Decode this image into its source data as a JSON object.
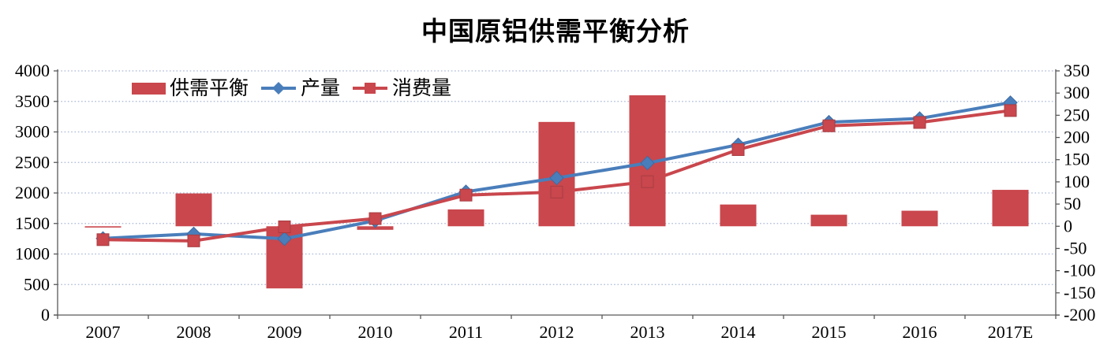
{
  "title": "中国原铝供需平衡分析",
  "chart_data": {
    "type": "combo-bar-line",
    "title": "中国原铝供需平衡分析",
    "categories": [
      "2007",
      "2008",
      "2009",
      "2010",
      "2011",
      "2012",
      "2013",
      "2014",
      "2015",
      "2016",
      "2017E"
    ],
    "series": [
      {
        "name": "供需平衡",
        "kind": "bar",
        "axis": "right",
        "color": "#C9474D",
        "values": [
          -2,
          74,
          -140,
          -8,
          38,
          235,
          295,
          49,
          26,
          35,
          82
        ]
      },
      {
        "name": "产量",
        "kind": "line",
        "axis": "left",
        "marker": "diamond",
        "color": "#4A7EBB",
        "marker_stroke": "#3E6CA4",
        "values": [
          1255,
          1330,
          1250,
          1545,
          2020,
          2245,
          2490,
          2790,
          3160,
          3220,
          3480
        ]
      },
      {
        "name": "消费量",
        "kind": "line",
        "axis": "left",
        "marker": "square",
        "color": "#C9474D",
        "marker_stroke": "#A83D42",
        "values": [
          1235,
          1215,
          1445,
          1580,
          1965,
          2015,
          2185,
          2710,
          3100,
          3155,
          3350
        ]
      }
    ],
    "left_axis": {
      "min": 0,
      "max": 4000,
      "step": 500,
      "tick_labels": [
        "0",
        "500",
        "1000",
        "1500",
        "2000",
        "2500",
        "3000",
        "3500",
        "4000"
      ]
    },
    "right_axis": {
      "min": -200,
      "max": 350,
      "step": 50,
      "tick_labels": [
        "-200",
        "-150",
        "-100",
        "-50",
        "0",
        "50",
        "100",
        "150",
        "200",
        "250",
        "300",
        "350"
      ]
    },
    "grid": {
      "horizontal": true,
      "style": "dotted",
      "color": "#A9B7D6"
    },
    "colors": {
      "axis": "#595959",
      "text": "#000000",
      "background": "#ffffff"
    },
    "legend": {
      "position": "top-inside",
      "entries": [
        "供需平衡",
        "产量",
        "消费量"
      ]
    }
  }
}
